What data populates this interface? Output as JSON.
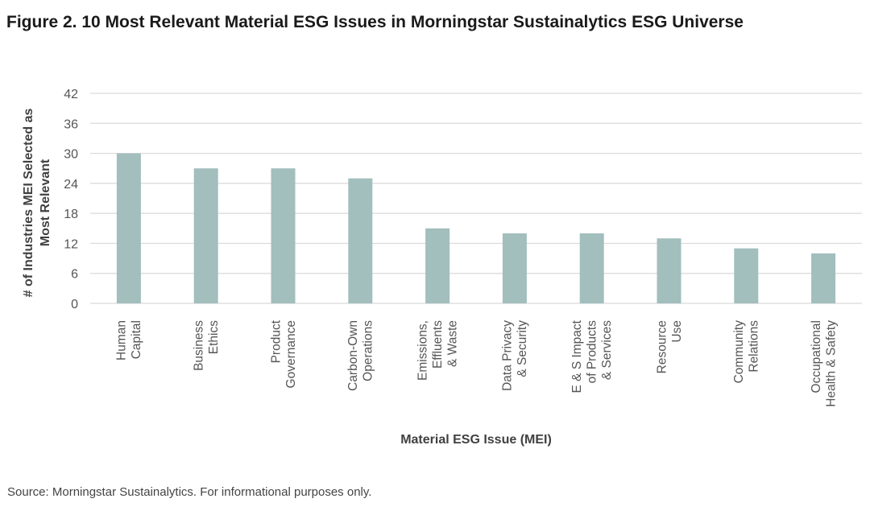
{
  "figure": {
    "title": "Figure 2. 10 Most Relevant Material ESG Issues in Morningstar Sustainalytics ESG Universe",
    "source": "Source: Morningstar Sustainalytics. For informational purposes only."
  },
  "chart_data": {
    "type": "bar",
    "title": "Figure 2. 10 Most Relevant Material ESG Issues in Morningstar Sustainalytics ESG Universe",
    "xlabel": "Material ESG Issue (MEI)",
    "ylabel_lines": [
      "# of Industries MEI Selected as",
      "Most Relevant"
    ],
    "categories": [
      [
        "Human",
        "Capital"
      ],
      [
        "Business",
        "Ethics"
      ],
      [
        "Product",
        "Governance"
      ],
      [
        "Carbon-Own",
        "Operations"
      ],
      [
        "Emissions,",
        "Effluents",
        "& Waste"
      ],
      [
        "Data Privacy",
        "& Security"
      ],
      [
        "E & S Impact",
        "of Products",
        "& Services"
      ],
      [
        "Resource",
        "Use"
      ],
      [
        "Community",
        "Relations"
      ],
      [
        "Occupational",
        "Health & Safety"
      ]
    ],
    "values": [
      30,
      27,
      27,
      25,
      15,
      14,
      14,
      13,
      11,
      10
    ],
    "ylim": [
      0,
      42
    ],
    "yticks": [
      0,
      6,
      12,
      18,
      24,
      30,
      36,
      42
    ],
    "grid": true,
    "bar_color": "#a2bebd",
    "grid_color": "#d9d9d9"
  }
}
